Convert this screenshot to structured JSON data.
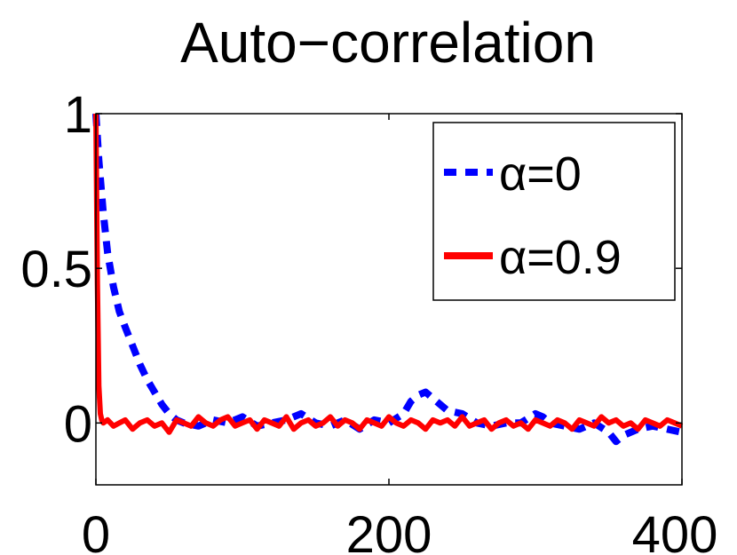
{
  "chart_data": {
    "type": "line",
    "title": "Auto−correlation",
    "xlabel": "",
    "ylabel": "",
    "xlim": [
      0,
      400
    ],
    "ylim": [
      -0.2,
      1
    ],
    "x_ticks": [
      {
        "value": 0,
        "label": "0"
      },
      {
        "value": 200,
        "label": "200"
      },
      {
        "value": 400,
        "label": "400"
      }
    ],
    "y_ticks": [
      {
        "value": 0,
        "label": "0"
      },
      {
        "value": 0.5,
        "label": "0.5"
      },
      {
        "value": 1,
        "label": "1"
      }
    ],
    "grid": false,
    "legend_position": "top-right",
    "series": [
      {
        "name": "α=0",
        "color": "#0000ff",
        "style": "dashed",
        "x": [
          0,
          2,
          5,
          8,
          12,
          16,
          20,
          25,
          30,
          35,
          40,
          45,
          50,
          55,
          60,
          70,
          80,
          90,
          100,
          110,
          120,
          130,
          140,
          150,
          160,
          170,
          180,
          190,
          200,
          210,
          215,
          220,
          225,
          230,
          240,
          250,
          260,
          270,
          280,
          290,
          300,
          305,
          310,
          320,
          330,
          340,
          350,
          355,
          360,
          370,
          380,
          390,
          400
        ],
        "values": [
          1.0,
          0.85,
          0.68,
          0.55,
          0.44,
          0.36,
          0.31,
          0.25,
          0.19,
          0.14,
          0.1,
          0.06,
          0.03,
          0.01,
          0.0,
          -0.01,
          0.01,
          0.0,
          0.02,
          -0.01,
          0.0,
          0.01,
          0.03,
          0.0,
          -0.01,
          0.01,
          -0.02,
          0.01,
          0.0,
          0.03,
          0.07,
          0.09,
          0.1,
          0.08,
          0.04,
          0.03,
          0.0,
          -0.01,
          0.0,
          0.0,
          0.03,
          0.02,
          0.0,
          -0.01,
          -0.02,
          0.0,
          -0.03,
          -0.06,
          -0.04,
          -0.02,
          -0.01,
          -0.02,
          -0.03
        ]
      },
      {
        "name": "α=0.9",
        "color": "#ff0000",
        "style": "solid",
        "x": [
          0,
          1,
          2,
          3,
          4,
          5,
          8,
          12,
          16,
          20,
          25,
          30,
          35,
          40,
          45,
          50,
          55,
          60,
          65,
          70,
          75,
          80,
          85,
          90,
          95,
          100,
          105,
          110,
          115,
          120,
          125,
          130,
          135,
          140,
          145,
          150,
          155,
          160,
          165,
          170,
          175,
          180,
          185,
          190,
          195,
          200,
          205,
          210,
          215,
          220,
          225,
          230,
          235,
          240,
          245,
          250,
          255,
          260,
          265,
          270,
          275,
          280,
          285,
          290,
          295,
          300,
          305,
          310,
          315,
          320,
          325,
          330,
          335,
          340,
          345,
          350,
          355,
          360,
          365,
          370,
          375,
          380,
          385,
          390,
          395,
          400
        ],
        "values": [
          1.0,
          0.45,
          0.12,
          0.03,
          0.01,
          0.0,
          0.01,
          -0.01,
          0.0,
          0.01,
          -0.02,
          0.0,
          0.01,
          -0.01,
          0.0,
          -0.03,
          0.01,
          0.0,
          -0.01,
          0.02,
          0.0,
          -0.01,
          0.01,
          0.02,
          -0.01,
          0.0,
          0.01,
          -0.02,
          0.01,
          0.0,
          -0.01,
          0.02,
          -0.02,
          0.0,
          0.01,
          -0.01,
          0.0,
          0.02,
          -0.01,
          0.01,
          0.0,
          -0.02,
          0.01,
          0.0,
          -0.01,
          0.02,
          0.0,
          -0.01,
          0.01,
          0.0,
          -0.02,
          0.01,
          0.0,
          0.01,
          -0.01,
          0.02,
          -0.01,
          0.0,
          0.01,
          -0.02,
          0.0,
          0.01,
          -0.01,
          0.0,
          -0.02,
          0.01,
          0.0,
          -0.01,
          0.01,
          0.0,
          -0.02,
          0.01,
          0.0,
          -0.01,
          0.02,
          0.0,
          0.01,
          -0.01,
          0.0,
          -0.02,
          0.01,
          0.0,
          -0.01,
          0.01,
          0.0,
          -0.01
        ]
      }
    ]
  }
}
